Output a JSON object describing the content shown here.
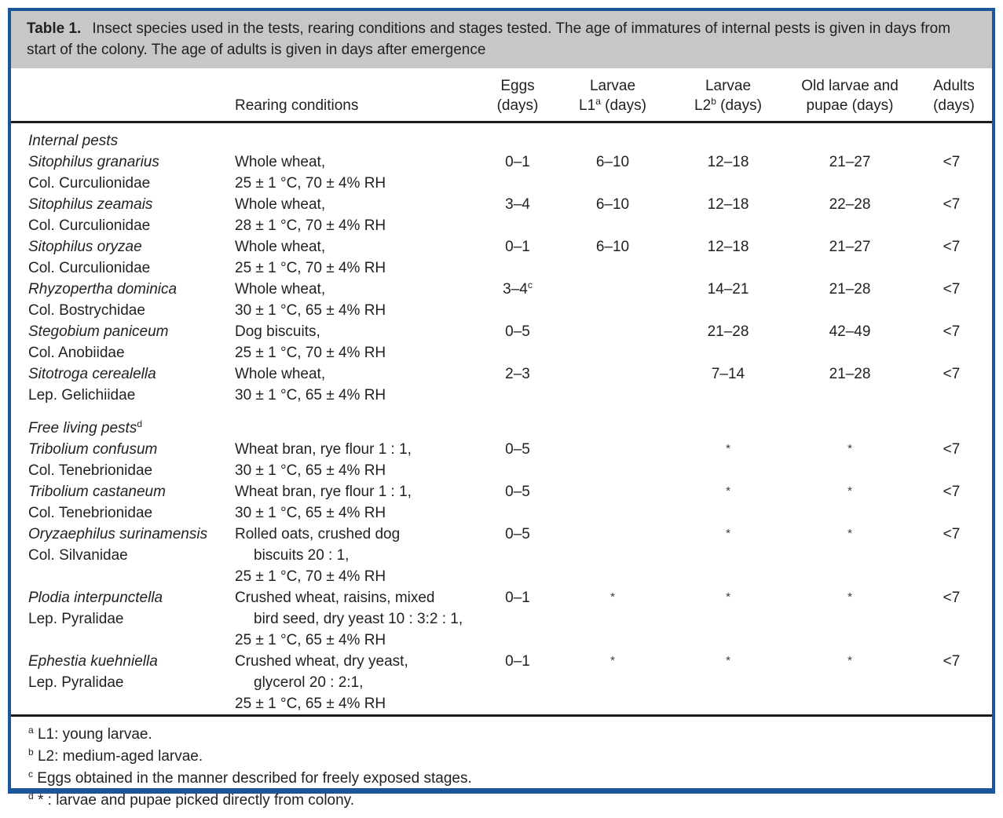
{
  "table": {
    "caption": {
      "label": "Table 1.",
      "text": "Insect species used in the tests, rearing conditions and stages tested. The age of immatures of internal pests is given in days from start of the colony. The age of adults is given in days after emergence"
    },
    "columns": {
      "rearing": "Rearing conditions",
      "eggs_line1": "Eggs",
      "eggs_line2": "(days)",
      "l1_line1": "Larvae",
      "l1_base": "L1",
      "l1_sup": "a",
      "l1_rest": " (days)",
      "l2_line1": "Larvae",
      "l2_base": "L2",
      "l2_sup": "b",
      "l2_rest": " (days)",
      "old_line1": "Old larvae and",
      "old_line2": "pupae (days)",
      "adults_line1": "Adults",
      "adults_line2": "(days)"
    },
    "rows": [
      {
        "type": "section",
        "name": "Internal pests",
        "sup": ""
      },
      {
        "type": "species",
        "name": "Sitophilus granarius",
        "family": "Col. Curculionidae",
        "rearing": [
          {
            "t": "Whole wheat,",
            "i": false
          },
          {
            "t": "25 ± 1 °C, 70 ± 4% RH",
            "i": false
          }
        ],
        "eggs": "0–1",
        "eggs_sup": "",
        "l1": "6–10",
        "l2": "12–18",
        "old": "21–27",
        "adults": "<7"
      },
      {
        "type": "species",
        "name": "Sitophilus zeamais",
        "family": "Col. Curculionidae",
        "rearing": [
          {
            "t": "Whole wheat,",
            "i": false
          },
          {
            "t": "28 ± 1 °C, 70 ± 4% RH",
            "i": false
          }
        ],
        "eggs": "3–4",
        "eggs_sup": "",
        "l1": "6–10",
        "l2": "12–18",
        "old": "22–28",
        "adults": "<7"
      },
      {
        "type": "species",
        "name": "Sitophilus oryzae",
        "family": "Col. Curculionidae",
        "rearing": [
          {
            "t": "Whole wheat,",
            "i": false
          },
          {
            "t": "25 ± 1 °C, 70 ± 4% RH",
            "i": false
          }
        ],
        "eggs": "0–1",
        "eggs_sup": "",
        "l1": "6–10",
        "l2": "12–18",
        "old": "21–27",
        "adults": "<7"
      },
      {
        "type": "species",
        "name": "Rhyzopertha dominica",
        "family": "Col. Bostrychidae",
        "rearing": [
          {
            "t": "Whole wheat,",
            "i": false
          },
          {
            "t": "30 ± 1 °C, 65 ± 4% RH",
            "i": false
          }
        ],
        "eggs": "3–4",
        "eggs_sup": "c",
        "l1": "",
        "l2": "14–21",
        "old": "21–28",
        "adults": "<7"
      },
      {
        "type": "species",
        "name": "Stegobium paniceum",
        "family": "Col. Anobiidae",
        "rearing": [
          {
            "t": "Dog biscuits,",
            "i": false
          },
          {
            "t": "25 ± 1 °C, 70 ± 4% RH",
            "i": false
          }
        ],
        "eggs": "0–5",
        "eggs_sup": "",
        "l1": "",
        "l2": "21–28",
        "old": "42–49",
        "adults": "<7"
      },
      {
        "type": "species",
        "name": "Sitotroga cerealella",
        "family": "Lep. Gelichiidae",
        "rearing": [
          {
            "t": "Whole wheat,",
            "i": false
          },
          {
            "t": "30 ± 1 °C, 65 ± 4% RH",
            "i": false
          }
        ],
        "eggs": "2–3",
        "eggs_sup": "",
        "l1": "",
        "l2": "7–14",
        "old": "21–28",
        "adults": "<7"
      },
      {
        "type": "section",
        "name": "Free living pests",
        "sup": "d"
      },
      {
        "type": "species",
        "name": "Tribolium confusum",
        "family": "Col. Tenebrionidae",
        "rearing": [
          {
            "t": "Wheat bran, rye flour 1 : 1,",
            "i": false
          },
          {
            "t": "30 ± 1 °C, 65 ± 4% RH",
            "i": false
          }
        ],
        "eggs": "0–5",
        "eggs_sup": "",
        "l1": "",
        "l2": "*",
        "old": "*",
        "adults": "<7"
      },
      {
        "type": "species",
        "name": "Tribolium castaneum",
        "family": "Col. Tenebrionidae",
        "rearing": [
          {
            "t": "Wheat bran, rye flour 1 : 1,",
            "i": false
          },
          {
            "t": "30 ± 1 °C, 65 ± 4% RH",
            "i": false
          }
        ],
        "eggs": "0–5",
        "eggs_sup": "",
        "l1": "",
        "l2": "*",
        "old": "*",
        "adults": "<7"
      },
      {
        "type": "species",
        "name": "Oryzaephilus surinamensis",
        "family": "Col. Silvanidae",
        "rearing": [
          {
            "t": "Rolled oats, crushed dog",
            "i": false
          },
          {
            "t": "biscuits 20 : 1,",
            "i": true
          },
          {
            "t": "25 ± 1 °C, 70 ± 4% RH",
            "i": false
          }
        ],
        "eggs": "0–5",
        "eggs_sup": "",
        "l1": "",
        "l2": "*",
        "old": "*",
        "adults": "<7"
      },
      {
        "type": "species",
        "name": "Plodia interpunctella",
        "family": "Lep. Pyralidae",
        "rearing": [
          {
            "t": "Crushed wheat, raisins, mixed",
            "i": false
          },
          {
            "t": "bird seed, dry yeast 10 : 3:2 : 1,",
            "i": true
          },
          {
            "t": "25 ± 1 °C, 65 ± 4% RH",
            "i": false
          }
        ],
        "eggs": "0–1",
        "eggs_sup": "",
        "l1": "*",
        "l2": "*",
        "old": "*",
        "adults": "<7"
      },
      {
        "type": "species",
        "name": "Ephestia kuehniella",
        "family": "Lep. Pyralidae",
        "rearing": [
          {
            "t": "Crushed wheat, dry yeast,",
            "i": false
          },
          {
            "t": "glycerol 20 : 2:1,",
            "i": true
          },
          {
            "t": "25 ± 1 °C, 65 ± 4% RH",
            "i": false
          }
        ],
        "eggs": "0–1",
        "eggs_sup": "",
        "l1": "*",
        "l2": "*",
        "old": "*",
        "adults": "<7"
      }
    ],
    "footnotes": [
      {
        "sup": "a",
        "text": "L1: young larvae."
      },
      {
        "sup": "b",
        "text": "L2: medium-aged larvae."
      },
      {
        "sup": "c",
        "text": "Eggs obtained in the manner described for freely exposed stages."
      },
      {
        "sup": "d",
        "text": "* : larvae and pupae picked directly from colony."
      }
    ],
    "colors": {
      "frame_blue": "#1a5699",
      "caption_gray": "#c6c7c9",
      "rule_black": "#1c1c1c",
      "text": "#231f20"
    }
  }
}
